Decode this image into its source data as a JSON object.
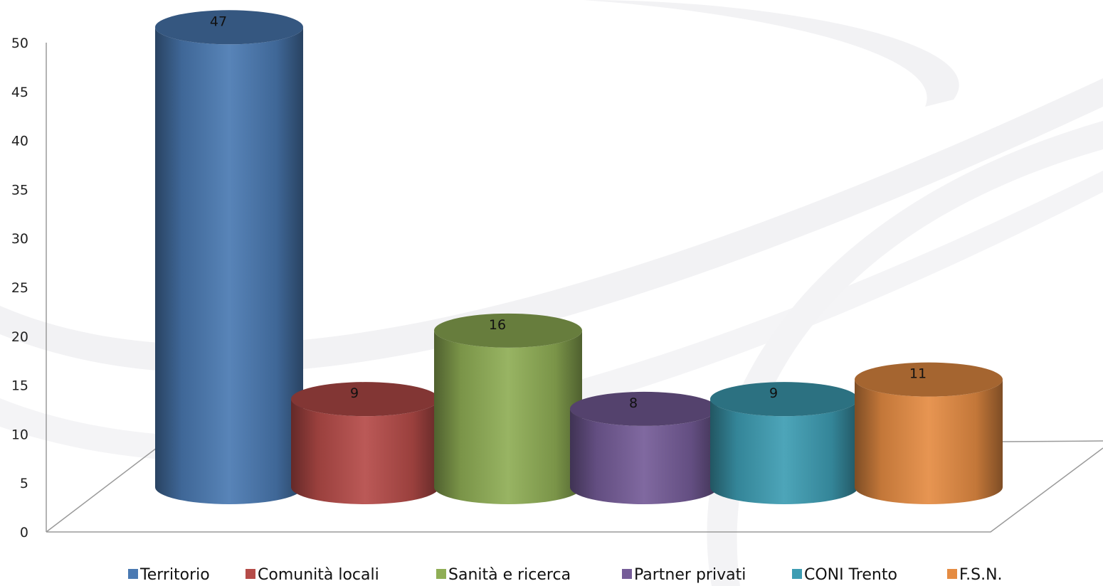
{
  "chart_data": {
    "type": "bar",
    "categories": [
      "Territorio",
      "Comunità locali",
      "Sanità e ricerca",
      "Partner privati",
      "CONI Trento",
      "F.S.N."
    ],
    "values": [
      47,
      9,
      16,
      8,
      9,
      11
    ],
    "colors": [
      "#4a79b2",
      "#b54b48",
      "#8fae55",
      "#755c98",
      "#3d9db3",
      "#e58c43"
    ],
    "ylim": [
      0,
      50
    ],
    "yticks": [
      "0",
      "5",
      "10",
      "15",
      "20",
      "25",
      "30",
      "35",
      "40",
      "45",
      "50"
    ],
    "data_labels": [
      "47",
      "9",
      "16",
      "8",
      "9",
      "11"
    ],
    "legend_position": "bottom",
    "grid": false,
    "style": "3d-cylinder"
  }
}
